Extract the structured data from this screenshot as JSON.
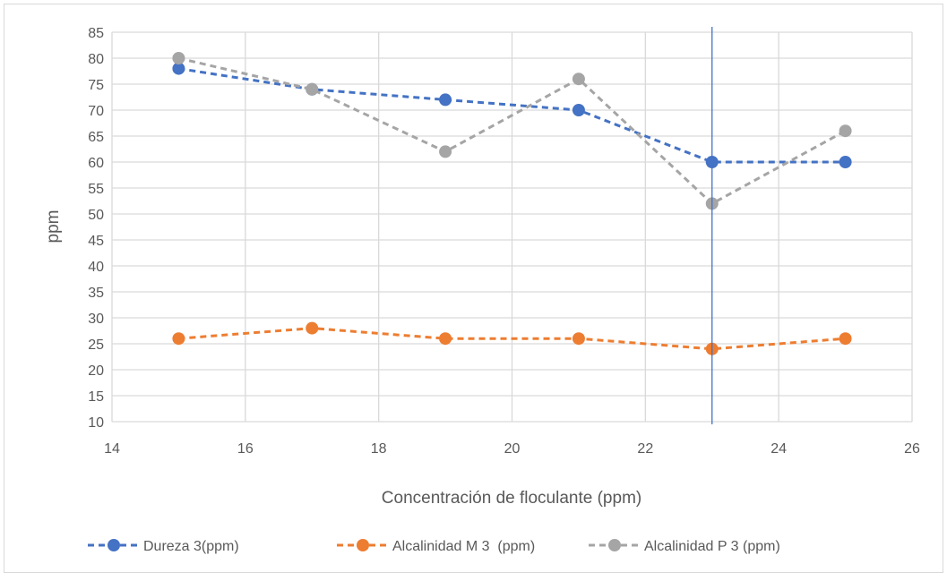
{
  "chart_data": {
    "type": "scatter",
    "title": "",
    "xlabel": "Concentración de floculante (ppm)",
    "ylabel": "ppm",
    "xlim": [
      14,
      26
    ],
    "ylim": [
      10,
      85
    ],
    "xticks": [
      "14",
      "16",
      "18",
      "20",
      "22",
      "24",
      "26"
    ],
    "yticks": [
      "10",
      "15",
      "20",
      "25",
      "30",
      "35",
      "40",
      "45",
      "50",
      "55",
      "60",
      "65",
      "70",
      "75",
      "80",
      "85"
    ],
    "grid": true,
    "legend_position": "bottom",
    "reference_line_x": 23,
    "x": [
      15,
      17,
      19,
      21,
      23,
      25
    ],
    "series": [
      {
        "name": "Dureza 3(ppm)",
        "values": [
          78,
          74,
          72,
          70,
          60,
          60
        ],
        "color": "#4472C4",
        "line_style": "dashed"
      },
      {
        "name": "Alcalinidad M 3  (ppm)",
        "values": [
          26,
          28,
          26,
          26,
          24,
          26
        ],
        "color": "#ED7D31",
        "line_style": "dashed"
      },
      {
        "name": "Alcalinidad P 3 (ppm)",
        "values": [
          80,
          74,
          62,
          76,
          52,
          66
        ],
        "color": "#A5A5A5",
        "line_style": "dashed"
      }
    ],
    "reference_line_color": "#4472C4",
    "gridline_color": "#D9D9D9",
    "border_color": "#D9D9D9"
  }
}
